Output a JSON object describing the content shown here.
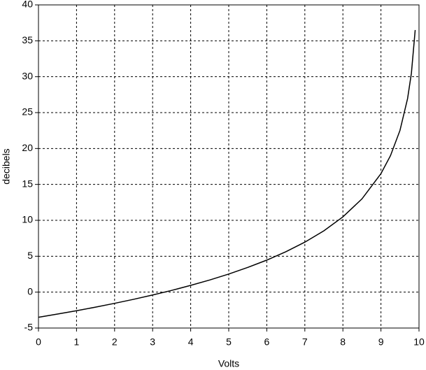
{
  "chart_data": {
    "type": "line",
    "x_label": "Volts",
    "y_label": "decibels",
    "x": [
      0,
      0.5,
      1,
      1.5,
      2,
      2.5,
      3,
      3.5,
      4,
      4.5,
      5,
      5.5,
      6,
      6.5,
      7,
      7.5,
      8,
      8.5,
      9,
      9.25,
      9.5,
      9.7,
      9.8,
      9.9
    ],
    "series": [
      {
        "color": "#000000",
        "values": [
          -3.5,
          -3.05,
          -2.59,
          -2.09,
          -1.56,
          -1.0,
          -0.4,
          0.24,
          0.94,
          1.69,
          2.52,
          3.44,
          4.46,
          5.62,
          6.96,
          8.54,
          10.48,
          12.98,
          16.5,
          19.0,
          22.52,
          26.96,
          30.48,
          36.5
        ]
      }
    ],
    "xlim": [
      0,
      10
    ],
    "xticks": [
      0,
      1,
      2,
      3,
      4,
      5,
      6,
      7,
      8,
      9,
      10
    ],
    "ylim": [
      -5,
      40
    ],
    "yticks": [
      -5,
      0,
      5,
      10,
      15,
      20,
      25,
      30,
      35,
      40
    ],
    "grid": true
  }
}
